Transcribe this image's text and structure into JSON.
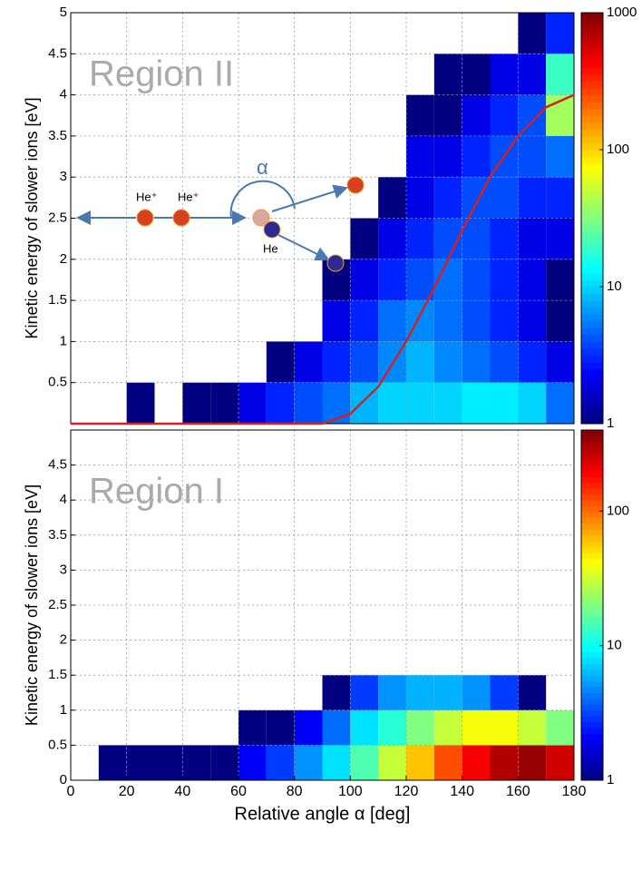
{
  "chart_data": [
    {
      "type": "heatmap",
      "annotation": "Region II",
      "ylabel": "Kinetic energy of slower ions [eV]",
      "xlim": [
        0,
        180
      ],
      "ylim": [
        0,
        5
      ],
      "yticks": [
        0.5,
        1,
        1.5,
        2,
        2.5,
        3,
        3.5,
        4,
        4.5,
        5
      ],
      "xbins": [
        0,
        10,
        20,
        30,
        40,
        50,
        60,
        70,
        80,
        90,
        100,
        110,
        120,
        130,
        140,
        150,
        160,
        170,
        180
      ],
      "ybins": [
        0,
        0.5,
        1,
        1.5,
        2,
        2.5,
        3,
        3.5,
        4,
        4.5,
        5
      ],
      "z": [
        [
          null,
          null,
          1,
          null,
          1,
          1,
          2,
          3,
          4,
          5,
          8,
          10,
          10,
          10,
          12,
          12,
          10,
          5
        ],
        [
          null,
          null,
          null,
          null,
          null,
          null,
          null,
          1,
          2,
          3,
          4,
          6,
          8,
          6,
          5,
          4,
          3,
          2
        ],
        [
          null,
          null,
          null,
          null,
          null,
          null,
          null,
          null,
          null,
          2,
          3,
          5,
          6,
          5,
          4,
          3,
          2,
          1
        ],
        [
          null,
          null,
          null,
          null,
          null,
          null,
          null,
          null,
          null,
          1,
          2,
          3,
          4,
          5,
          4,
          3,
          2,
          1
        ],
        [
          null,
          null,
          null,
          null,
          null,
          null,
          null,
          null,
          null,
          null,
          1,
          2,
          3,
          4,
          4,
          3,
          2,
          2
        ],
        [
          null,
          null,
          null,
          null,
          null,
          null,
          null,
          null,
          null,
          null,
          null,
          1,
          2,
          3,
          4,
          4,
          3,
          3
        ],
        [
          null,
          null,
          null,
          null,
          null,
          null,
          null,
          null,
          null,
          null,
          null,
          null,
          2,
          2,
          3,
          4,
          4,
          5
        ],
        [
          null,
          null,
          null,
          null,
          null,
          null,
          null,
          null,
          null,
          null,
          null,
          null,
          1,
          1,
          2,
          3,
          4,
          40
        ],
        [
          null,
          null,
          null,
          null,
          null,
          null,
          null,
          null,
          null,
          null,
          null,
          null,
          null,
          1,
          1,
          2,
          2,
          20
        ],
        [
          null,
          null,
          null,
          null,
          null,
          null,
          null,
          null,
          null,
          null,
          null,
          null,
          null,
          null,
          null,
          null,
          1,
          3
        ]
      ],
      "zlim": [
        1,
        1000
      ],
      "zlog": true,
      "zticks": [
        1,
        10,
        100,
        1000
      ],
      "grid": true,
      "curve": {
        "color": "#d42020",
        "x": [
          0,
          90,
          100,
          110,
          120,
          130,
          140,
          150,
          160,
          170,
          180
        ],
        "y": [
          0,
          0,
          0.12,
          0.45,
          1.0,
          1.65,
          2.35,
          3.0,
          3.5,
          3.85,
          4.0
        ]
      },
      "diagram": {
        "ion1": "He⁺",
        "ion2": "He⁺",
        "neutral": "He",
        "angle": "α"
      }
    },
    {
      "type": "heatmap",
      "annotation": "Region I",
      "ylabel": "Kinetic energy of slower ions [eV]",
      "xlabel": "Relative angle α [deg]",
      "xlim": [
        0,
        180
      ],
      "xticks": [
        0,
        20,
        40,
        60,
        80,
        100,
        120,
        140,
        160,
        180
      ],
      "ylim": [
        0,
        5
      ],
      "yticks": [
        0,
        0.5,
        1,
        1.5,
        2,
        2.5,
        3,
        3.5,
        4,
        4.5
      ],
      "xbins": [
        0,
        10,
        20,
        30,
        40,
        50,
        60,
        70,
        80,
        90,
        100,
        110,
        120,
        130,
        140,
        150,
        160,
        170,
        180
      ],
      "ybins": [
        0,
        0.5,
        1,
        1.5,
        2,
        2.5,
        3,
        3.5,
        4,
        4.5,
        5
      ],
      "z": [
        [
          null,
          1,
          1,
          1,
          1,
          1,
          2,
          3,
          5,
          8,
          15,
          30,
          60,
          120,
          200,
          300,
          350,
          250
        ],
        [
          null,
          null,
          null,
          null,
          null,
          null,
          1,
          1,
          2,
          4,
          8,
          12,
          20,
          30,
          40,
          40,
          30,
          20
        ],
        [
          null,
          null,
          null,
          null,
          null,
          null,
          null,
          null,
          null,
          1,
          3,
          5,
          6,
          6,
          5,
          3,
          1,
          null
        ],
        [
          null,
          null,
          null,
          null,
          null,
          null,
          null,
          null,
          null,
          null,
          null,
          null,
          null,
          null,
          null,
          null,
          null,
          null
        ],
        [
          null,
          null,
          null,
          null,
          null,
          null,
          null,
          null,
          null,
          null,
          null,
          null,
          null,
          null,
          null,
          null,
          null,
          null
        ],
        [
          null,
          null,
          null,
          null,
          null,
          null,
          null,
          null,
          null,
          null,
          null,
          null,
          null,
          null,
          null,
          null,
          null,
          null
        ],
        [
          null,
          null,
          null,
          null,
          null,
          null,
          null,
          null,
          null,
          null,
          null,
          null,
          null,
          null,
          null,
          null,
          null,
          null
        ],
        [
          null,
          null,
          null,
          null,
          null,
          null,
          null,
          null,
          null,
          null,
          null,
          null,
          null,
          null,
          null,
          null,
          null,
          null
        ],
        [
          null,
          null,
          null,
          null,
          null,
          null,
          null,
          null,
          null,
          null,
          null,
          null,
          null,
          null,
          null,
          null,
          null,
          null
        ],
        [
          null,
          null,
          null,
          null,
          null,
          null,
          null,
          null,
          null,
          null,
          null,
          null,
          null,
          null,
          null,
          null,
          null,
          null
        ]
      ],
      "zlim": [
        1,
        400
      ],
      "zlog": true,
      "zticks": [
        1,
        10,
        100
      ],
      "grid": true
    }
  ]
}
